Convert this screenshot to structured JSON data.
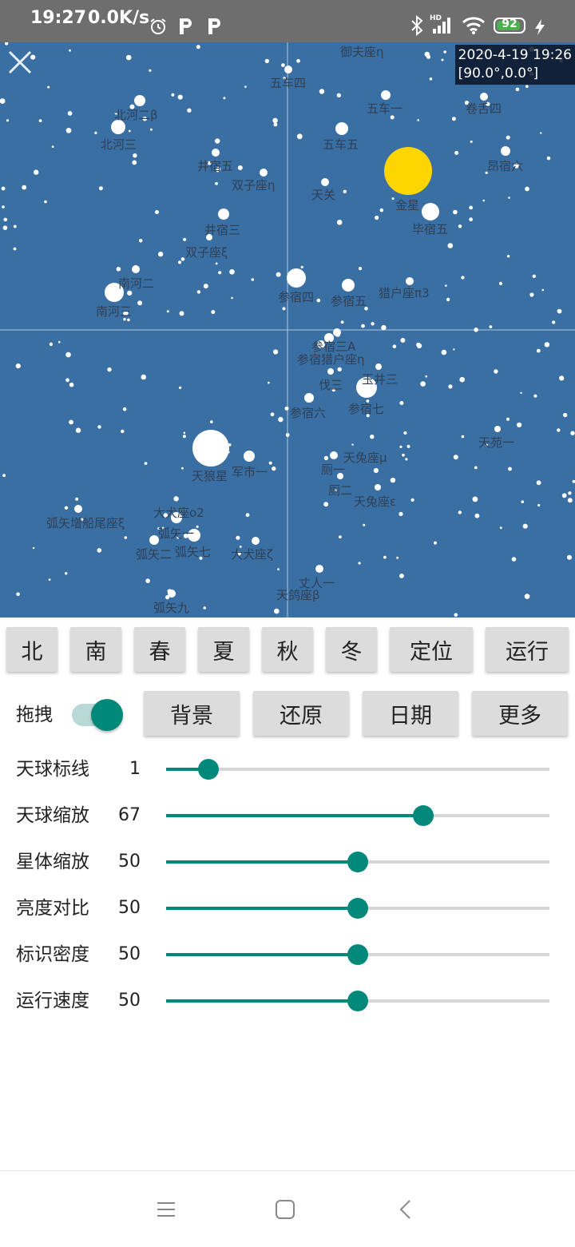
{
  "status_bar": {
    "time": "19:27",
    "speed": "0.0K/s",
    "battery_level": "92",
    "battery_fraction": 0.92,
    "icons": [
      "alarm-icon",
      "p-app-icon",
      "p-app-icon",
      "bluetooth-icon",
      "hd-signal-icon",
      "wifi-icon",
      "battery-icon",
      "charging-icon"
    ]
  },
  "sky": {
    "background_color": "#3a6fa4",
    "datetime": "2020-4-19 19:26",
    "coords": "[90.0°,0.0°]",
    "close_icon": "close-icon",
    "labels": [
      "御夫座η",
      "五车四",
      "五车一",
      "卷舌四",
      "北河二β",
      "北河三",
      "五车五",
      "井宿五",
      "双子座η",
      "天关",
      "昂宿六",
      "金星",
      "毕宿五",
      "井宿三",
      "双子座ξ",
      "南河二",
      "南河三",
      "参宿四",
      "参宿五",
      "猎户座π3",
      "参宿三A",
      "参宿猎户座η",
      "伐三",
      "玉井三",
      "参宿六",
      "参宿七",
      "天苑一",
      "天狼星",
      "军市一",
      "天兔座μ",
      "厕一",
      "厕二",
      "天兔座ε",
      "弧矢增船尾座ξ",
      "大犬座o2",
      "弧矢一",
      "弧矢二",
      "弧矢七",
      "大犬座ζ",
      "丈人一",
      "天鸽座β",
      "弧矢九"
    ]
  },
  "buttons_row1": [
    "北",
    "南",
    "春",
    "夏",
    "秋",
    "冬",
    "定位",
    "运行"
  ],
  "drag": {
    "label": "拖拽",
    "on": true
  },
  "buttons_row2": [
    "背景",
    "还原",
    "日期",
    "更多"
  ],
  "sliders": [
    {
      "label": "天球标线",
      "value": "1",
      "fraction": 0.11
    },
    {
      "label": "天球缩放",
      "value": "67",
      "fraction": 0.67
    },
    {
      "label": "星体缩放",
      "value": "50",
      "fraction": 0.5
    },
    {
      "label": "亮度对比",
      "value": "50",
      "fraction": 0.5
    },
    {
      "label": "标识密度",
      "value": "50",
      "fraction": 0.5
    },
    {
      "label": "运行速度",
      "value": "50",
      "fraction": 0.5
    }
  ],
  "accent_color": "#00897b",
  "nav_bar": [
    "menu-icon",
    "home-icon",
    "back-icon"
  ]
}
